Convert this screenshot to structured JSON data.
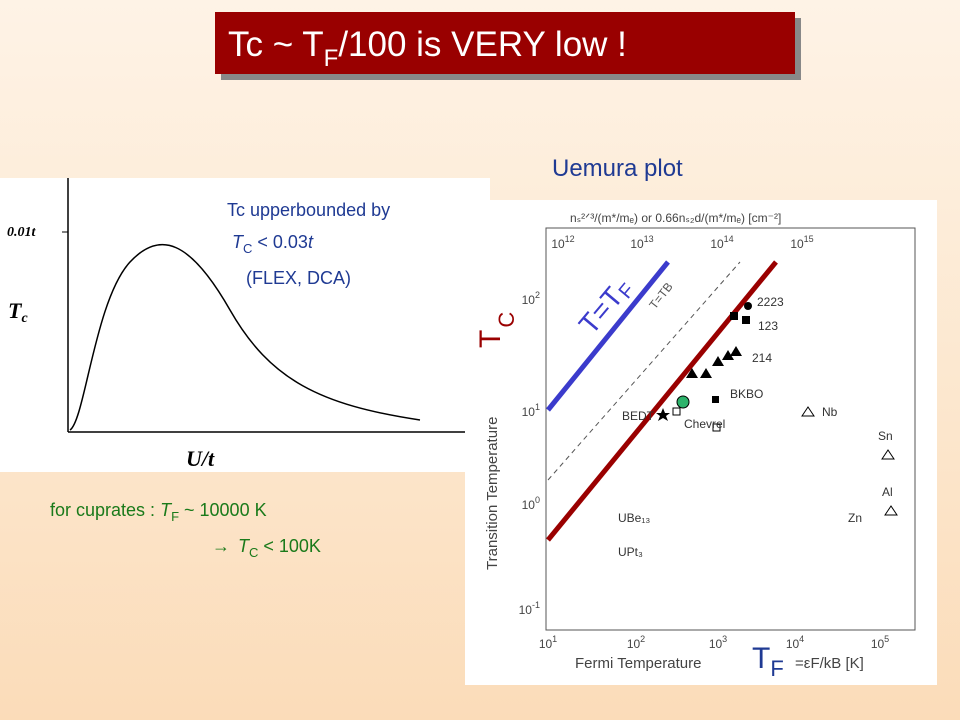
{
  "title": {
    "pre": "Tc  ~  T",
    "sub": "F",
    "post": "/100 is VERY low !"
  },
  "left_figure": {
    "y_tick": "0.01t",
    "y_label": "T",
    "y_label_sub": "c",
    "x_label": "U/t",
    "note": {
      "line1": "Tc upperbounded by",
      "line2_var": "T",
      "line2_sub": "C",
      "line2_mid": " < 0.03",
      "line2_t": "t",
      "line3": "(FLEX, DCA)"
    }
  },
  "cuprates": {
    "line1_pre": "for cuprates : ",
    "line1_var": "T",
    "line1_sub": "F",
    "line1_post": "  ~  10000 K",
    "line2_arrow": "→",
    "line2_var": "T",
    "line2_sub": "C",
    "line2_post": " < 100K"
  },
  "uemura": {
    "heading": "Uemura plot",
    "top_axis_label": "nₛ²ᐟ³/(m*/mₑ)  or  0.66nₛ₂d/(m*/mₑ)  [cm⁻²]",
    "top_ticks": [
      [
        "10",
        "12"
      ],
      [
        "10",
        "13"
      ],
      [
        "10",
        "14"
      ],
      [
        "10",
        "15"
      ]
    ],
    "bottom_ticks": [
      [
        "10",
        "1"
      ],
      [
        "10",
        "2"
      ],
      [
        "10",
        "3"
      ],
      [
        "10",
        "4"
      ],
      [
        "10",
        "5"
      ]
    ],
    "left_ticks": [
      [
        "10",
        "2"
      ],
      [
        "10",
        "1"
      ],
      [
        "10",
        "0"
      ],
      [
        "10",
        "-1"
      ]
    ],
    "y_axis_label": "Transition Temperature",
    "x_axis_label": "Fermi Temperature",
    "x_axis_formula": "=εF/kB  [K]",
    "dashed_label": "T=TB",
    "points": [
      "2223",
      "123",
      "214",
      "BKBO",
      "Chevrel",
      "BEDT",
      "Nb",
      "Sn",
      "Al",
      "Zn",
      "UBe₁₃",
      "UPt₃"
    ],
    "overlay_tf": {
      "pre": "T=T",
      "sub": "F"
    },
    "overlay_tc": {
      "pre": "T",
      "sub": "C"
    },
    "overlay_tfermi": {
      "pre": "T",
      "sub": "F"
    }
  }
}
